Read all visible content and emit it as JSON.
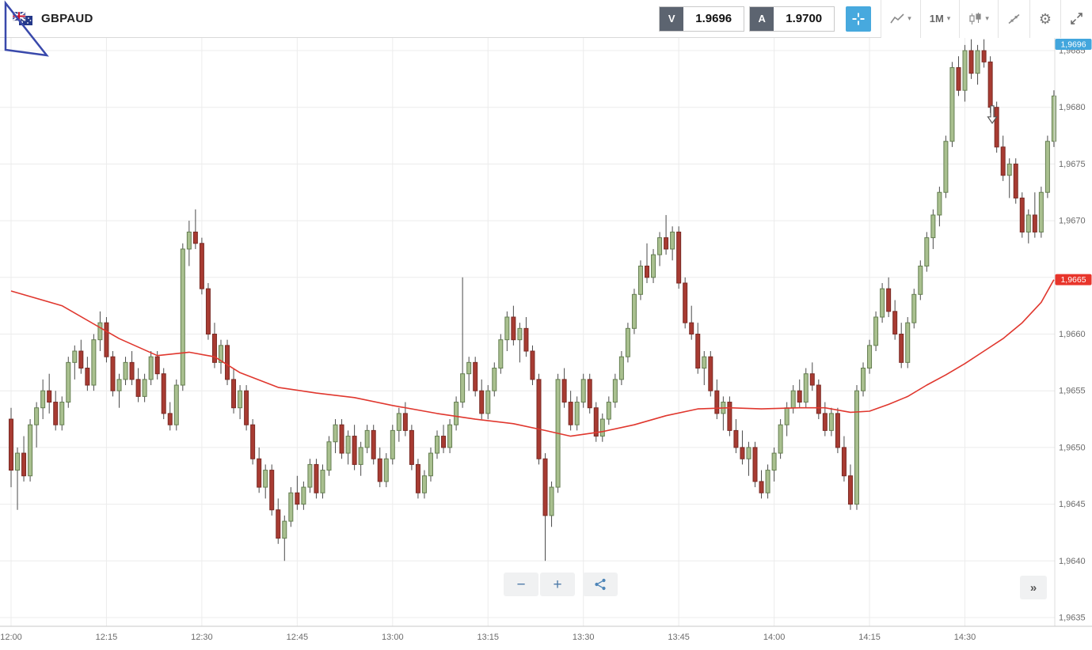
{
  "header": {
    "symbol": "GBPAUD",
    "sell_label": "V",
    "sell_price": "1.9696",
    "buy_label": "A",
    "buy_price": "1.9700",
    "timeframe": "1M"
  },
  "icons": {
    "caret": "▾",
    "gear": "⚙"
  },
  "controls": {
    "zoom_out": "−",
    "zoom_in": "+",
    "more": "»"
  },
  "chart_data": {
    "type": "candlestick",
    "symbol": "GBPAUD",
    "interval": "1M",
    "start_time": "12:00",
    "interval_minutes": 1,
    "price_offset": 1.96,
    "unit": 0.0001,
    "current_price_label": "1,9696",
    "ma_price_label": "1,9665",
    "y_axis": {
      "min": 1.9635,
      "max": 1.9685,
      "tick_step": 0.0005,
      "labels": [
        "1,9685",
        "1,9680",
        "1,9675",
        "1,9670",
        "1,9665",
        "1,9660",
        "1,9655",
        "1,9650",
        "1,9645",
        "1,9640",
        "1,9635"
      ]
    },
    "x_labels": [
      "12:00",
      "12:15",
      "12:30",
      "12:45",
      "13:00",
      "13:15",
      "13:30",
      "13:45",
      "14:00",
      "14:15",
      "14:30"
    ],
    "colors": {
      "up_fill": "#a9c08f",
      "up_stroke": "#647e50",
      "down_fill": "#a83b32",
      "down_stroke": "#7a2a24",
      "wick": "#4a4a4a",
      "ma": "#e0372e",
      "current_tag": "#42a6dd",
      "ma_tag": "#e8352b",
      "grid": "#ececec",
      "axis_text": "#6b6b6b"
    },
    "annotation": {
      "type": "down-arrow",
      "t": 154.3,
      "price_pips": 78.6
    },
    "ma_points": [
      [
        0,
        63.8
      ],
      [
        8,
        62.5
      ],
      [
        17,
        59.6
      ],
      [
        23,
        58.1
      ],
      [
        28,
        58.4
      ],
      [
        32,
        58
      ],
      [
        36,
        56.6
      ],
      [
        42,
        55.3
      ],
      [
        48,
        54.8
      ],
      [
        54,
        54.4
      ],
      [
        60,
        53.7
      ],
      [
        67,
        53
      ],
      [
        73,
        52.5
      ],
      [
        79,
        52.1
      ],
      [
        84,
        51.5
      ],
      [
        88,
        51
      ],
      [
        93,
        51.4
      ],
      [
        98,
        52
      ],
      [
        103,
        52.8
      ],
      [
        108,
        53.4
      ],
      [
        113,
        53.5
      ],
      [
        118,
        53.4
      ],
      [
        124,
        53.5
      ],
      [
        128,
        53.5
      ],
      [
        132,
        53.1
      ],
      [
        135,
        53.2
      ],
      [
        138,
        53.8
      ],
      [
        141,
        54.5
      ],
      [
        144,
        55.5
      ],
      [
        147,
        56.4
      ],
      [
        150,
        57.4
      ],
      [
        153,
        58.5
      ],
      [
        156,
        59.6
      ],
      [
        159,
        61
      ],
      [
        162,
        62.8
      ],
      [
        164,
        64.8
      ]
    ],
    "candles": [
      [
        52.5,
        53.5,
        46.5,
        48
      ],
      [
        48,
        50,
        44.5,
        49.5
      ],
      [
        49.5,
        51,
        47,
        47.5
      ],
      [
        47.5,
        52.5,
        47,
        52
      ],
      [
        52,
        54,
        50,
        53.5
      ],
      [
        53.5,
        56,
        52.5,
        55
      ],
      [
        55,
        56.5,
        53,
        54
      ],
      [
        54,
        55,
        51.5,
        52
      ],
      [
        52,
        54.5,
        51.5,
        54
      ],
      [
        54,
        58,
        53.5,
        57.5
      ],
      [
        57.5,
        59,
        56,
        58.5
      ],
      [
        58.5,
        59.5,
        56.5,
        57
      ],
      [
        57,
        58,
        55,
        55.5
      ],
      [
        55.5,
        60,
        55,
        59.5
      ],
      [
        59.5,
        62,
        58.5,
        61
      ],
      [
        61,
        61.5,
        57.5,
        58
      ],
      [
        58,
        58.5,
        54.5,
        55
      ],
      [
        55,
        56.5,
        53.5,
        56
      ],
      [
        56,
        58,
        55.5,
        57.5
      ],
      [
        57.5,
        58.5,
        55.5,
        56
      ],
      [
        56,
        57,
        54,
        54.5
      ],
      [
        54.5,
        56.5,
        54,
        56
      ],
      [
        56,
        58.5,
        55.5,
        58
      ],
      [
        58,
        58.5,
        56,
        56.5
      ],
      [
        56.5,
        57,
        52.5,
        53
      ],
      [
        53,
        54,
        51.5,
        52
      ],
      [
        52,
        56,
        51.5,
        55.5
      ],
      [
        55.5,
        68,
        55,
        67.5
      ],
      [
        67.5,
        70,
        66,
        69
      ],
      [
        69,
        71,
        67.5,
        68
      ],
      [
        68,
        68.5,
        63.5,
        64
      ],
      [
        64,
        64.5,
        59.5,
        60
      ],
      [
        60,
        61,
        57,
        57.5
      ],
      [
        57.5,
        59.5,
        56.5,
        59
      ],
      [
        59,
        59.5,
        55.5,
        56
      ],
      [
        56,
        57,
        53,
        53.5
      ],
      [
        53.5,
        55.5,
        52.5,
        55
      ],
      [
        55,
        55.5,
        51.5,
        52
      ],
      [
        52,
        52.5,
        48.5,
        49
      ],
      [
        49,
        50,
        46,
        46.5
      ],
      [
        46.5,
        48.5,
        45.5,
        48
      ],
      [
        48,
        48.5,
        44,
        44.5
      ],
      [
        44.5,
        45.5,
        41.5,
        42
      ],
      [
        42,
        44,
        40,
        43.5
      ],
      [
        43.5,
        46.5,
        43,
        46
      ],
      [
        46,
        47.5,
        44.5,
        45
      ],
      [
        45,
        47,
        44.5,
        46.5
      ],
      [
        46.5,
        49,
        46,
        48.5
      ],
      [
        48.5,
        49,
        45.5,
        46
      ],
      [
        46,
        48.5,
        45.5,
        48
      ],
      [
        48,
        51,
        47.5,
        50.5
      ],
      [
        50.5,
        52.5,
        49.5,
        52
      ],
      [
        52,
        52.5,
        49,
        49.5
      ],
      [
        49.5,
        51.5,
        48.5,
        51
      ],
      [
        51,
        52,
        48,
        48.5
      ],
      [
        48.5,
        50.5,
        47.5,
        50
      ],
      [
        50,
        52,
        49.5,
        51.5
      ],
      [
        51.5,
        52,
        48.5,
        49
      ],
      [
        49,
        50,
        46.5,
        47
      ],
      [
        47,
        49.5,
        46.5,
        49
      ],
      [
        49,
        52,
        48.5,
        51.5
      ],
      [
        51.5,
        53.5,
        50.5,
        53
      ],
      [
        53,
        54,
        51,
        51.5
      ],
      [
        51.5,
        52,
        48,
        48.5
      ],
      [
        48.5,
        49,
        45.5,
        46
      ],
      [
        46,
        48,
        45.5,
        47.5
      ],
      [
        47.5,
        50,
        47,
        49.5
      ],
      [
        49.5,
        51.5,
        49,
        51
      ],
      [
        51,
        52,
        49.5,
        50
      ],
      [
        50,
        52.5,
        49.5,
        52
      ],
      [
        52,
        54.5,
        51.5,
        54
      ],
      [
        54,
        65,
        53.5,
        56.5
      ],
      [
        56.5,
        58,
        55,
        57.5
      ],
      [
        57.5,
        58,
        54.5,
        55
      ],
      [
        55,
        56,
        52.5,
        53
      ],
      [
        53,
        55.5,
        52.5,
        55
      ],
      [
        55,
        57.5,
        54.5,
        57
      ],
      [
        57,
        60,
        56.5,
        59.5
      ],
      [
        59.5,
        62,
        58.5,
        61.5
      ],
      [
        61.5,
        62.5,
        59,
        59.5
      ],
      [
        59.5,
        61,
        57.5,
        60.5
      ],
      [
        60.5,
        61.5,
        58,
        58.5
      ],
      [
        58.5,
        59,
        55.5,
        56
      ],
      [
        56,
        56.5,
        48.5,
        49
      ],
      [
        49,
        49.5,
        40,
        44
      ],
      [
        44,
        47,
        43,
        46.5
      ],
      [
        46.5,
        56.5,
        46,
        56
      ],
      [
        56,
        57,
        53.5,
        54
      ],
      [
        54,
        55,
        51.5,
        52
      ],
      [
        52,
        54.5,
        51.5,
        54
      ],
      [
        54,
        56.5,
        53.5,
        56
      ],
      [
        56,
        56.5,
        53,
        53.5
      ],
      [
        53.5,
        54,
        50.5,
        51
      ],
      [
        51,
        53,
        50.5,
        52.5
      ],
      [
        52.5,
        54.5,
        52,
        54
      ],
      [
        54,
        56.5,
        53.5,
        56
      ],
      [
        56,
        58.5,
        55.5,
        58
      ],
      [
        58,
        61,
        57.5,
        60.5
      ],
      [
        60.5,
        64,
        60,
        63.5
      ],
      [
        63.5,
        66.5,
        63,
        66
      ],
      [
        66,
        68,
        64.5,
        65
      ],
      [
        65,
        67.5,
        64.5,
        67
      ],
      [
        67,
        69,
        66,
        68.5
      ],
      [
        68.5,
        70.5,
        67,
        67.5
      ],
      [
        67.5,
        69.5,
        66.5,
        69
      ],
      [
        69,
        69.5,
        64,
        64.5
      ],
      [
        64.5,
        65,
        60.5,
        61
      ],
      [
        61,
        62.5,
        59.5,
        60
      ],
      [
        60,
        61,
        56.5,
        57
      ],
      [
        57,
        58.5,
        55.5,
        58
      ],
      [
        58,
        58.5,
        54.5,
        55
      ],
      [
        55,
        56,
        52.5,
        53
      ],
      [
        53,
        54.5,
        51.5,
        54
      ],
      [
        54,
        54.5,
        51,
        51.5
      ],
      [
        51.5,
        52.5,
        49.5,
        50
      ],
      [
        50,
        51.5,
        48.5,
        49
      ],
      [
        49,
        50.5,
        47.5,
        50
      ],
      [
        50,
        50.5,
        46.5,
        47
      ],
      [
        47,
        48,
        45.5,
        46
      ],
      [
        46,
        48.5,
        45.5,
        48
      ],
      [
        48,
        50,
        47,
        49.5
      ],
      [
        49.5,
        52.5,
        49,
        52
      ],
      [
        52,
        54,
        51,
        53.5
      ],
      [
        53.5,
        55.5,
        53,
        55
      ],
      [
        55,
        56,
        53.5,
        54
      ],
      [
        54,
        57,
        53.5,
        56.5
      ],
      [
        56.5,
        57.5,
        55,
        55.5
      ],
      [
        55.5,
        56,
        52.5,
        53
      ],
      [
        53,
        54,
        51,
        51.5
      ],
      [
        51.5,
        53.5,
        51,
        53
      ],
      [
        53,
        53.5,
        49.5,
        50
      ],
      [
        50,
        51,
        47,
        47.5
      ],
      [
        47.5,
        48.5,
        44.5,
        45
      ],
      [
        45,
        55.5,
        44.5,
        55
      ],
      [
        55,
        57.5,
        54.5,
        57
      ],
      [
        57,
        59.5,
        56.5,
        59
      ],
      [
        59,
        62,
        58.5,
        61.5
      ],
      [
        61.5,
        64.5,
        61,
        64
      ],
      [
        64,
        65,
        61.5,
        62
      ],
      [
        62,
        63,
        59.5,
        60
      ],
      [
        60,
        61,
        57,
        57.5
      ],
      [
        57.5,
        61.5,
        57,
        61
      ],
      [
        61,
        64,
        60.5,
        63.5
      ],
      [
        63.5,
        66.5,
        63,
        66
      ],
      [
        66,
        69,
        65.5,
        68.5
      ],
      [
        68.5,
        71,
        67.5,
        70.5
      ],
      [
        70.5,
        73,
        69.5,
        72.5
      ],
      [
        72.5,
        77.5,
        72,
        77
      ],
      [
        77,
        84,
        76.5,
        83.5
      ],
      [
        83.5,
        84.5,
        81,
        81.5
      ],
      [
        81.5,
        85.5,
        80.5,
        85
      ],
      [
        85,
        86,
        82.5,
        83
      ],
      [
        83,
        85.5,
        82,
        85
      ],
      [
        85,
        86,
        83.5,
        84
      ],
      [
        84,
        84.5,
        79.5,
        80
      ],
      [
        80,
        80.5,
        76,
        76.5
      ],
      [
        76.5,
        77.5,
        73.5,
        74
      ],
      [
        74,
        75.5,
        72,
        75
      ],
      [
        75,
        75.5,
        71.5,
        72
      ],
      [
        72,
        72.5,
        68.5,
        69
      ],
      [
        69,
        71,
        68,
        70.5
      ],
      [
        70.5,
        72.5,
        68.5,
        69
      ],
      [
        69,
        73,
        68.5,
        72.5
      ],
      [
        72.5,
        77.5,
        72,
        77
      ],
      [
        77,
        81.5,
        76.5,
        81
      ]
    ]
  }
}
